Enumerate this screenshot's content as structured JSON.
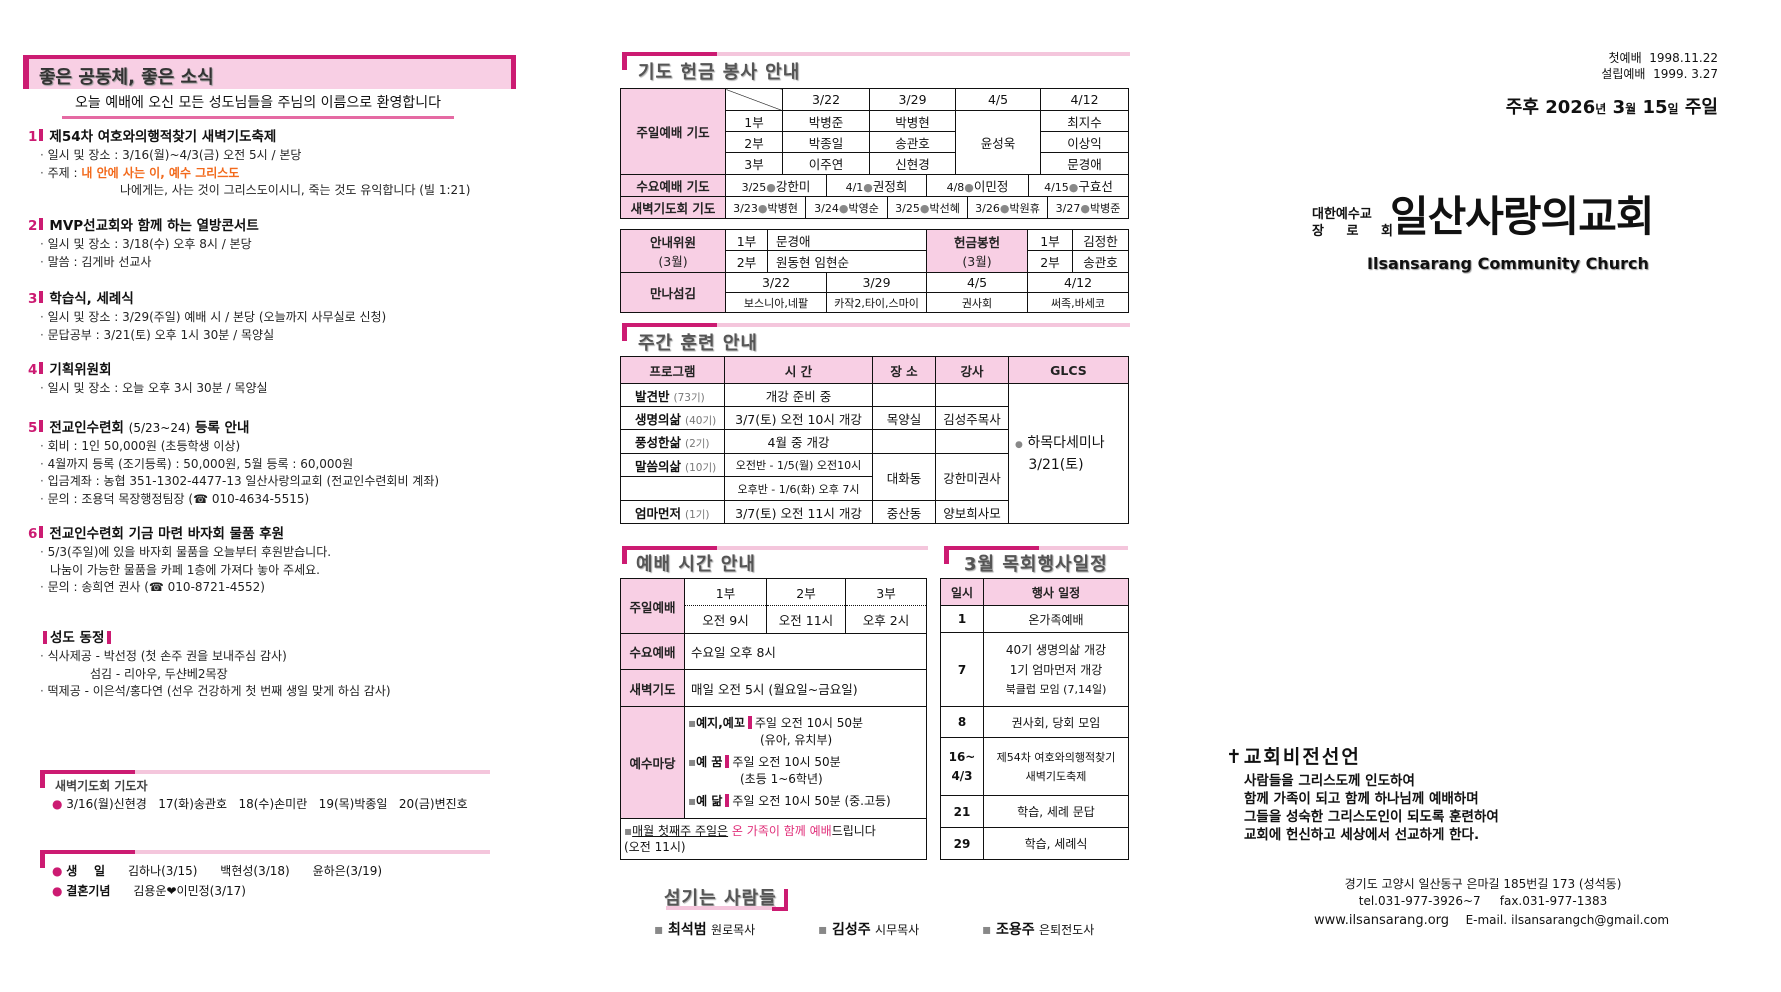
{
  "news": {
    "title": "좋은 공동체, 좋은 소식",
    "welcome": "오늘 예배에 오신 모든 성도님들을 주님의 이름으로 환영합니다",
    "items": [
      {
        "num": "1",
        "title": "제54차 여호와의행적찾기 새벽기도축제",
        "lines": [
          "일시 및 장소 : 3/16(월)~4/3(금) 오전 5시 / 본당"
        ],
        "theme_label": "주제 :",
        "theme": "내 안에 사는 이, 예수 그리스도",
        "verse": "나에게는, 사는 것이 그리스도이시니, 죽는 것도 유익합니다 (빌 1:21)"
      },
      {
        "num": "2",
        "title": "MVP선교회와 함께 하는 열방콘서트",
        "lines": [
          "일시 및 장소 : 3/18(수) 오후 8시 / 본당",
          "말씀 : 김게바 선교사"
        ]
      },
      {
        "num": "3",
        "title": "학습식, 세례식",
        "lines": [
          "일시 및 장소 : 3/29(주일) 예배 시 / 본당 (오늘까지 사무실로 신청)",
          "문답공부 : 3/21(토) 오후 1시 30분 / 목양실"
        ]
      },
      {
        "num": "4",
        "title": "기획위원회",
        "lines": [
          "일시 및 장소 : 오늘 오후 3시 30분 / 목양실"
        ]
      },
      {
        "num": "5",
        "title": "전교인수련회",
        "title_sub": "(5/23~24)",
        "title_end": "등록 안내",
        "lines": [
          "회비 : 1인 50,000원 (초등학생 이상)",
          "4월까지 등록 (조기등록) : 50,000원, 5월 등록 : 60,000원",
          "입금계좌 : 농협 351-1302-4477-13 일산사랑의교회 (전교인수련회비 계좌)",
          "문의 : 조용덕 목장행정팀장 (☎ 010-4634-5515)"
        ]
      },
      {
        "num": "6",
        "title": "전교인수련회 기금 마련 바자회 물품 후원",
        "lines": [
          "5/3(주일)에 있을 바자회 물품을 오늘부터 후원받습니다.",
          "나눔이 가능한 물품을 카페 1층에 가져다 놓아 주세요.",
          "문의 : 송희연 권사 (☎ 010-8721-4552)"
        ]
      }
    ],
    "congregation": {
      "title": "성도 동정",
      "lines": [
        "식사제공 - 박선정 (첫 손주 권을 보내주심 감사)",
        "섬김 - 리아우, 두샨베2목장",
        "떡제공 - 이은석/홍다연 (선우 건강하게 첫 번째 생일 맞게 하심 감사)"
      ]
    },
    "dawn_prayers": {
      "title": "새벽기도회 기도자",
      "line": "3/16(월)신현경   17(화)송관호   18(수)손미란   19(목)박종일   20(금)변진호"
    },
    "celebrations": {
      "birthday_label": "생    일",
      "birthdays": "김하나(3/15)      백현성(3/18)      윤하은(3/19)",
      "wedding_label": "결혼기념",
      "wedding": "김용운❤이민정(3/17)"
    }
  },
  "prayer": {
    "title": "기도 헌금 봉사 안내",
    "sunday_label": "주일예배 기도",
    "dates": [
      "3/22",
      "3/29",
      "4/5",
      "4/12"
    ],
    "services": [
      "1부",
      "2부",
      "3부"
    ],
    "rows": [
      [
        "박병준",
        "박병현",
        "최지수"
      ],
      [
        "박종일",
        "송관호",
        "이상익"
      ],
      [
        "이주연",
        "신현경",
        "문경애"
      ]
    ],
    "merged_4_5": "윤성욱",
    "wed_label": "수요예배 기도",
    "wed": [
      "3/25",
      "강한미",
      "4/1",
      "권정희",
      "4/8",
      "이민정",
      "4/15",
      "구효선"
    ],
    "dawn_label": "새벽기도회 기도",
    "dawn": [
      [
        "3/23",
        "박병현"
      ],
      [
        "3/24",
        "박영순"
      ],
      [
        "3/25",
        "박선혜"
      ],
      [
        "3/26",
        "박원휴"
      ],
      [
        "3/27",
        "박병준"
      ]
    ],
    "usher_label": "안내위원",
    "usher_month": "(3월)",
    "ushers": [
      [
        "1부",
        "문경애"
      ],
      [
        "2부",
        "원동현 임현순"
      ]
    ],
    "offering_label": "헌금봉헌",
    "offering_month": "(3월)",
    "offering": [
      [
        "1부",
        "김정한"
      ],
      [
        "2부",
        "송관호"
      ]
    ],
    "manna_label": "만나섬김",
    "manna": [
      [
        "3/22",
        "보스니아,네팔"
      ],
      [
        "3/29",
        "카작2,타이,스마이"
      ],
      [
        "4/5",
        "권사회"
      ],
      [
        "4/12",
        "써족,바세코"
      ]
    ]
  },
  "training": {
    "title": "주간 훈련 안내",
    "headers": [
      "프로그램",
      "시 간",
      "장 소",
      "강사",
      "GLCS"
    ],
    "rows": [
      {
        "name": "발견반",
        "gen": "(73기)",
        "time": "개강 준비 중",
        "place": "",
        "teacher": ""
      },
      {
        "name": "생명의삶",
        "gen": "(40기)",
        "time": "3/7(토) 오전 10시 개강",
        "place": "목양실",
        "teacher": "김성주목사"
      },
      {
        "name": "풍성한삶",
        "gen": "(2기)",
        "time": "4월 중 개강",
        "place": "",
        "teacher": ""
      },
      {
        "name": "말씀의삶",
        "gen": "(10기)",
        "time": "오전반 - 1/5(월) 오전10시",
        "time2": "오후반 - 1/6(화) 오후 7시",
        "place": "대화동",
        "teacher": "강한미권사"
      },
      {
        "name": "엄마먼저",
        "gen": "(1기)",
        "time": "3/7(토) 오전 11시 개강",
        "place": "중산동",
        "teacher": "양보희사모"
      }
    ],
    "glcs": [
      "하목다세미나",
      "3/21(토)"
    ]
  },
  "worship": {
    "title": "예배 시간 안내",
    "sunday_label": "주일예배",
    "services": [
      [
        "1부",
        "오전 9시"
      ],
      [
        "2부",
        "오전 11시"
      ],
      [
        "3부",
        "오후 2시"
      ]
    ],
    "wed_label": "수요예배",
    "wed": "수요일 오후 8시",
    "dawn_label": "새벽기도",
    "dawn": "매일 오전 5시 (월요일~금요일)",
    "jesus_label": "예수마당",
    "jesus": [
      {
        "name": "예지,예꼬",
        "time": "주일 오전 10시 50분",
        "sub": "(유아, 유치부)"
      },
      {
        "name": "예 꿈",
        "time": "주일 오전 10시 50분",
        "sub": "(초등 1~6학년)"
      },
      {
        "name": "예 닮",
        "time": "주일 오전 10시 50분 (중.고등)"
      }
    ],
    "note_underlined": "매월 첫째주 주일은",
    "note_pink": "온 가족이 함께 예배",
    "note_end": "드립니다",
    "note_time": "(오전 11시)"
  },
  "schedule": {
    "title": "3월 목회행사일정",
    "headers": [
      "일시",
      "행사 일정"
    ],
    "rows": [
      {
        "day": "1",
        "events": [
          "온가족예배"
        ]
      },
      {
        "day": "7",
        "events": [
          "40기 생명의삶 개강",
          "1기 엄마먼저 개강",
          "북클럽 모임 (7,14일)"
        ]
      },
      {
        "day": "8",
        "events": [
          "권사회, 당회 모임"
        ]
      },
      {
        "day": "16~\n4/3",
        "events": [
          "제54차 여호와의행적찾기",
          "새벽기도축제"
        ]
      },
      {
        "day": "21",
        "events": [
          "학습, 세례 문답"
        ]
      },
      {
        "day": "29",
        "events": [
          "학습, 세례식"
        ]
      }
    ]
  },
  "servants": {
    "title": "섬기는 사람들",
    "people": [
      [
        "최석범",
        "원로목사"
      ],
      [
        "김성주",
        "시무목사"
      ],
      [
        "조용주",
        "은퇴전도사"
      ]
    ]
  },
  "cover": {
    "first_worship_label": "첫예배",
    "first_worship": "1998.11.22",
    "founding_label": "설립예배",
    "founding": "1999. 3.27",
    "date_prefix": "주후",
    "year": "2026",
    "year_unit": "년",
    "month": "3",
    "month_unit": "월",
    "day": "15",
    "day_unit": "일",
    "day_name": "주일",
    "denomination_1": "대한예수교",
    "denomination_2": "장 로 회",
    "church_name": "일산사랑의교회",
    "church_name_en": "Ilsansarang Community Church",
    "vision_title": "교회비전선언",
    "vision": [
      "사람들을 그리스도께 인도하여",
      "함께 가족이 되고 함께 하나님께 예배하며",
      "그들을 성숙한 그리스도인이 되도록 훈련하여",
      "교회에 헌신하고 세상에서 선교하게 한다."
    ],
    "address": "경기도 고양시 일산동구 은마길 185번길 173 (성석동)",
    "tel": "tel.031-977-3926~7",
    "fax": "fax.031-977-1383",
    "website": "www.ilsansarang.org",
    "email_label": "E-mail.",
    "email": "ilsansarangch@gmail.com"
  },
  "colors": {
    "accent": "#cc1b72",
    "pink": "#f8cfe4",
    "theme": "#f26a1c"
  }
}
